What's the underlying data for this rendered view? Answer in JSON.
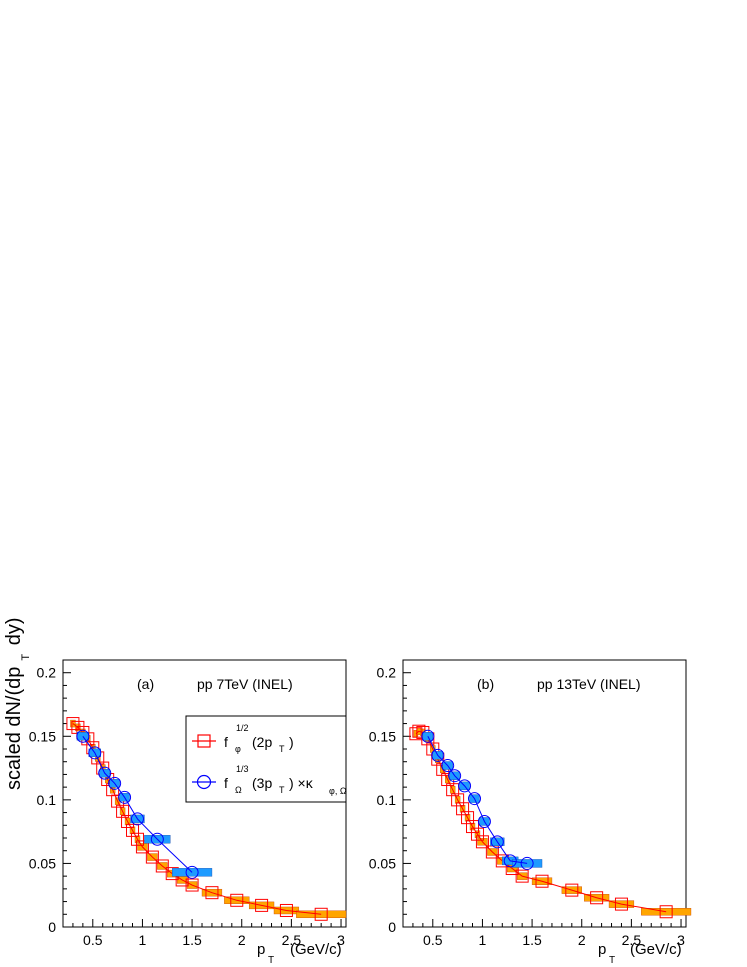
{
  "figure": {
    "ylabel": "scaled dN/(dp",
    "ylabel_sub": "T",
    "ylabel_tail": " dy)",
    "xlabel": "p",
    "xlabel_sub": "T",
    "xlabel_unit": "(GeV/c)"
  },
  "legend": {
    "entries": [
      {
        "f": "f",
        "sup": "1/2",
        "sub": "φ",
        "arg": "(2p",
        "argsub": "T",
        "tail": ")"
      },
      {
        "f": "f",
        "sup": "1/3",
        "sub": "Ω",
        "arg": "(3p",
        "argsub": "T",
        "tail": ") ×κ",
        "kappasub": "φ, Ω"
      }
    ]
  },
  "colors": {
    "phi": "#ff0000",
    "phi_band": "#ffa500",
    "omega": "#0000ff",
    "omega_band": "#1e9bff"
  },
  "chart_data": [
    {
      "type": "scatter",
      "panel_label": "(a)",
      "system_label": "pp 7TeV (INEL)",
      "xlim": [
        0.2,
        3.05
      ],
      "ylim": [
        0,
        0.21
      ],
      "x_ticks": [
        "0.5",
        "1",
        "1.5",
        "2",
        "2.5",
        "3"
      ],
      "y_ticks": [
        "0",
        "0.05",
        "0.1",
        "0.15",
        "0.2"
      ],
      "series": [
        {
          "key": "phi",
          "x": [
            0.3,
            0.35,
            0.4,
            0.45,
            0.5,
            0.55,
            0.6,
            0.65,
            0.7,
            0.75,
            0.8,
            0.85,
            0.9,
            0.95,
            1.0,
            1.1,
            1.2,
            1.3,
            1.4,
            1.5,
            1.7,
            1.95,
            2.2,
            2.45,
            2.8
          ],
          "y": [
            0.16,
            0.157,
            0.153,
            0.148,
            0.141,
            0.133,
            0.125,
            0.116,
            0.108,
            0.099,
            0.091,
            0.083,
            0.076,
            0.069,
            0.063,
            0.055,
            0.048,
            0.042,
            0.037,
            0.033,
            0.027,
            0.021,
            0.017,
            0.013,
            0.01
          ],
          "xerr": [
            0.025,
            0.025,
            0.025,
            0.025,
            0.025,
            0.025,
            0.025,
            0.025,
            0.025,
            0.025,
            0.025,
            0.025,
            0.025,
            0.025,
            0.05,
            0.05,
            0.05,
            0.05,
            0.05,
            0.05,
            0.1,
            0.125,
            0.125,
            0.125,
            0.25
          ]
        },
        {
          "key": "omega",
          "x": [
            0.4,
            0.52,
            0.62,
            0.72,
            0.82,
            0.95,
            1.15,
            1.5
          ],
          "y": [
            0.15,
            0.137,
            0.121,
            0.113,
            0.102,
            0.085,
            0.069,
            0.043
          ],
          "xerr": [
            0.06,
            0.06,
            0.05,
            0.05,
            0.05,
            0.07,
            0.13,
            0.2
          ]
        }
      ]
    },
    {
      "type": "scatter",
      "panel_label": "(b)",
      "system_label": "pp 13TeV (INEL)",
      "xlim": [
        0.2,
        3.05
      ],
      "ylim": [
        0,
        0.21
      ],
      "x_ticks": [
        "0.5",
        "1",
        "1.5",
        "2",
        "2.5",
        "3"
      ],
      "y_ticks": [
        "0",
        "0.05",
        "0.1",
        "0.15",
        "0.2"
      ],
      "series": [
        {
          "key": "phi",
          "x": [
            0.33,
            0.36,
            0.4,
            0.45,
            0.5,
            0.55,
            0.6,
            0.65,
            0.7,
            0.75,
            0.8,
            0.85,
            0.9,
            0.95,
            1.0,
            1.1,
            1.2,
            1.3,
            1.4,
            1.6,
            1.9,
            2.15,
            2.4,
            2.85
          ],
          "y": [
            0.152,
            0.154,
            0.153,
            0.148,
            0.14,
            0.132,
            0.124,
            0.116,
            0.108,
            0.1,
            0.093,
            0.086,
            0.079,
            0.073,
            0.067,
            0.059,
            0.052,
            0.046,
            0.04,
            0.036,
            0.029,
            0.023,
            0.018,
            0.012
          ],
          "xerr": [
            0.02,
            0.02,
            0.025,
            0.025,
            0.025,
            0.025,
            0.025,
            0.025,
            0.025,
            0.025,
            0.025,
            0.025,
            0.025,
            0.025,
            0.05,
            0.05,
            0.05,
            0.05,
            0.05,
            0.1,
            0.1,
            0.125,
            0.125,
            0.25
          ]
        },
        {
          "key": "omega",
          "x": [
            0.45,
            0.55,
            0.65,
            0.72,
            0.82,
            0.92,
            1.02,
            1.15,
            1.28,
            1.45
          ],
          "y": [
            0.15,
            0.135,
            0.127,
            0.119,
            0.111,
            0.101,
            0.083,
            0.067,
            0.052,
            0.05
          ],
          "xerr": [
            0.05,
            0.05,
            0.05,
            0.05,
            0.05,
            0.05,
            0.05,
            0.07,
            0.08,
            0.15
          ]
        }
      ]
    }
  ]
}
